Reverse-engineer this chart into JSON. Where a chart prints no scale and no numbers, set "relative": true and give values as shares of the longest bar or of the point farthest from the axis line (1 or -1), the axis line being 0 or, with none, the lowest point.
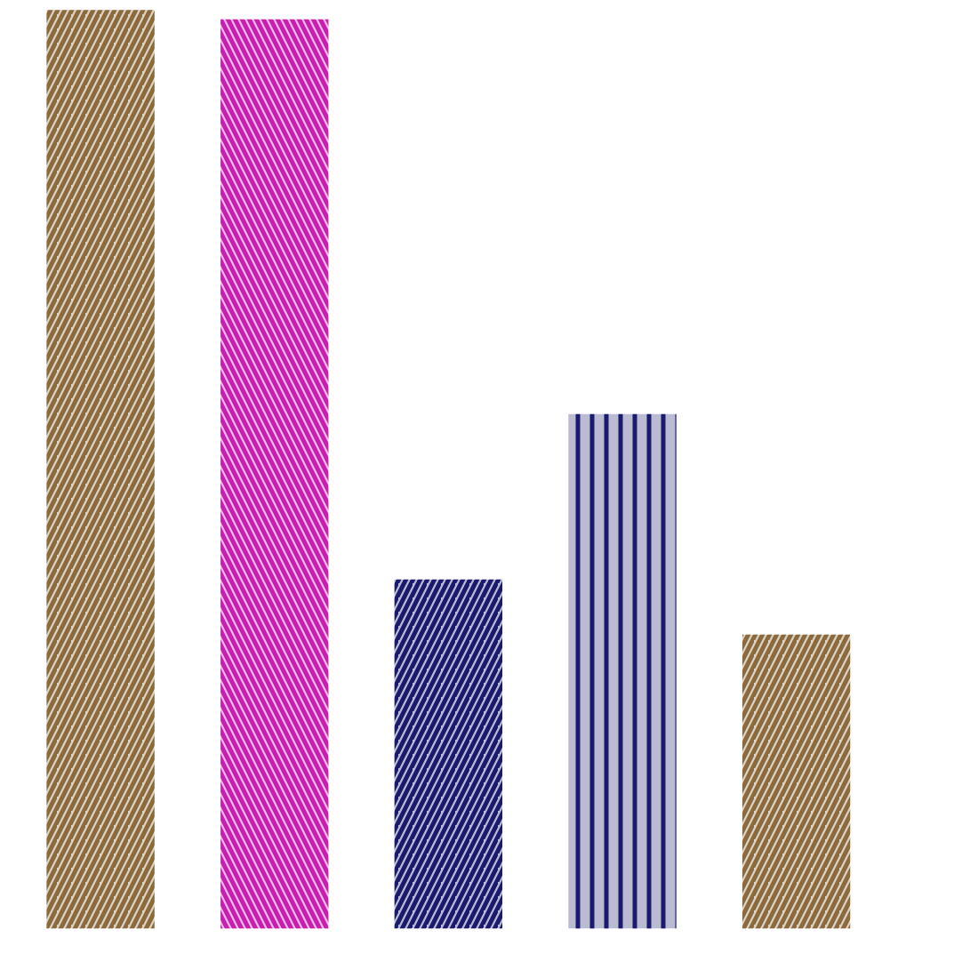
{
  "chart_data": {
    "type": "bar",
    "relative": true,
    "tick_labels": false,
    "grid": false,
    "categories": [
      null,
      null,
      null,
      null,
      null
    ],
    "values": [
      1,
      0.99,
      0.38,
      0.56,
      0.32
    ],
    "colors": [
      "#8b6b3d",
      "#c71fb0",
      "#1a1a6e",
      "#1a1a6e",
      "#8b6b3d"
    ]
  }
}
